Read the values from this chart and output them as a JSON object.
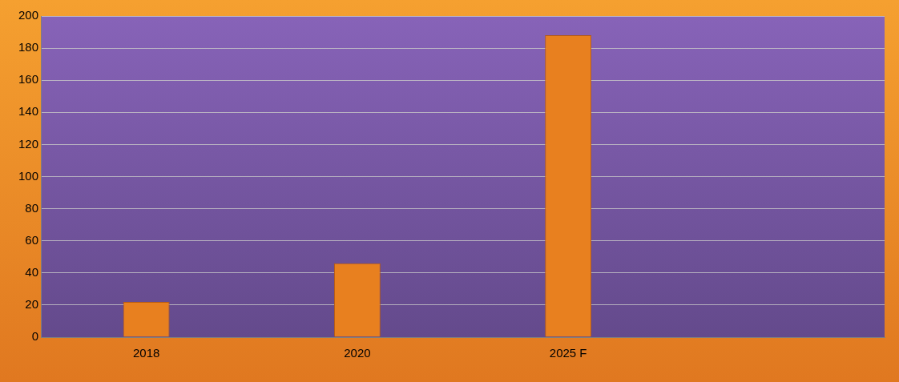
{
  "chart_data": {
    "type": "bar",
    "categories": [
      "2018",
      "2020",
      "2025 F",
      null
    ],
    "values": [
      22,
      46,
      188,
      null
    ],
    "color": "#e8801f",
    "ylim": [
      0,
      200
    ],
    "yticks": [
      0,
      20,
      40,
      60,
      80,
      100,
      120,
      140,
      160,
      180,
      200
    ],
    "grid": "y",
    "legend": false
  }
}
